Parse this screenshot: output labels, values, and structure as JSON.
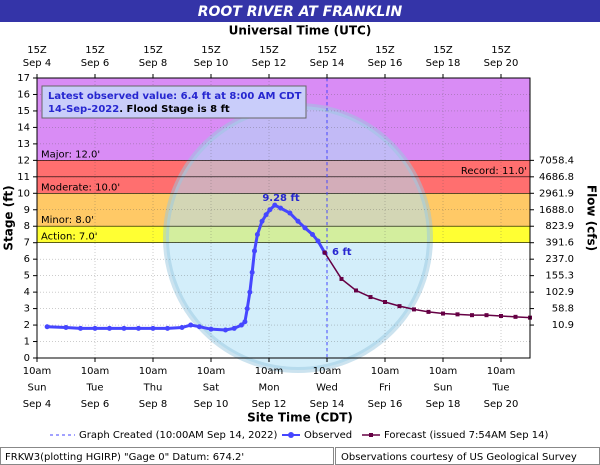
{
  "chart_data": {
    "type": "line",
    "title": "ROOT RIVER AT FRANKLIN",
    "top_axis_title": "Universal Time (UTC)",
    "x_axis_title": "Site Time (CDT)",
    "y_axis_title": "Stage (ft)",
    "y2_axis_title": "Flow (cfs)",
    "xlim": [
      4,
      21
    ],
    "ylim": [
      0,
      17
    ],
    "yticks": [
      0,
      1,
      2,
      3,
      4,
      5,
      6,
      7,
      8,
      9,
      10,
      11,
      12,
      13,
      14,
      15,
      16,
      17
    ],
    "grid": true,
    "xticks": [
      {
        "value": 4,
        "label": [
          "10am",
          "Sun",
          "Sep 4"
        ],
        "top": [
          "15Z",
          "Sep 4"
        ]
      },
      {
        "value": 6,
        "label": [
          "10am",
          "Tue",
          "Sep 6"
        ],
        "top": [
          "15Z",
          "Sep 6"
        ]
      },
      {
        "value": 8,
        "label": [
          "10am",
          "Thu",
          "Sep 8"
        ],
        "top": [
          "15Z",
          "Sep 8"
        ]
      },
      {
        "value": 10,
        "label": [
          "10am",
          "Sat",
          "Sep 10"
        ],
        "top": [
          "15Z",
          "Sep 10"
        ]
      },
      {
        "value": 12,
        "label": [
          "10am",
          "Mon",
          "Sep 12"
        ],
        "top": [
          "15Z",
          "Sep 12"
        ]
      },
      {
        "value": 14,
        "label": [
          "10am",
          "Wed",
          "Sep 14"
        ],
        "top": [
          "15Z",
          "Sep 14"
        ]
      },
      {
        "value": 16,
        "label": [
          "10am",
          "Fri",
          "Sep 16"
        ],
        "top": [
          "15Z",
          "Sep 16"
        ]
      },
      {
        "value": 18,
        "label": [
          "10am",
          "Sun",
          "Sep 18"
        ],
        "top": [
          "15Z",
          "Sep 18"
        ]
      },
      {
        "value": 20,
        "label": [
          "10am",
          "Tue",
          "Sep 20"
        ],
        "top": [
          "15Z",
          "Sep 20"
        ]
      }
    ],
    "y2ticks": [
      {
        "stage": 12,
        "label": "7058.4"
      },
      {
        "stage": 11,
        "label": "4686.8"
      },
      {
        "stage": 10,
        "label": "2961.9"
      },
      {
        "stage": 9,
        "label": "1688.0"
      },
      {
        "stage": 8,
        "label": "823.9"
      },
      {
        "stage": 7,
        "label": "391.6"
      },
      {
        "stage": 6,
        "label": "237.0"
      },
      {
        "stage": 5,
        "label": "155.3"
      },
      {
        "stage": 4,
        "label": "102.9"
      },
      {
        "stage": 3,
        "label": "58.8"
      },
      {
        "stage": 2,
        "label": "10.9"
      }
    ],
    "bands": [
      {
        "from": 7,
        "to": 8,
        "color": "#ffff33"
      },
      {
        "from": 8,
        "to": 10,
        "color": "#ffc966"
      },
      {
        "from": 10,
        "to": 12,
        "color": "#ff6f6f"
      },
      {
        "from": 12,
        "to": 17,
        "color": "#d98cf5"
      }
    ],
    "flood_levels": [
      {
        "stage": 12,
        "label": "Major: 12.0'"
      },
      {
        "stage": 10,
        "label": "Moderate: 10.0'"
      },
      {
        "stage": 8,
        "label": "Minor: 8.0'"
      },
      {
        "stage": 7,
        "label": "Action: 7.0'"
      }
    ],
    "record": {
      "stage": 11,
      "label": "Record: 11.0'"
    },
    "graph_created": {
      "x": 14,
      "label": "Graph Created (10:00AM Sep 14, 2022)"
    },
    "series": [
      {
        "name": "Observed",
        "color": "#4646ff",
        "x": [
          4.35,
          5,
          5.5,
          6,
          6.5,
          7,
          7.5,
          8,
          8.5,
          9,
          9.3,
          9.6,
          10,
          10.5,
          10.8,
          11.05,
          11.17,
          11.25,
          11.34,
          11.42,
          11.5,
          11.6,
          11.76,
          11.9,
          12.03,
          12.2,
          12.4,
          12.72,
          13,
          13.24,
          13.5,
          13.69,
          13.92
        ],
        "values": [
          1.9,
          1.85,
          1.8,
          1.8,
          1.8,
          1.8,
          1.8,
          1.8,
          1.8,
          1.85,
          2.0,
          1.9,
          1.75,
          1.7,
          1.8,
          2.0,
          2.2,
          3.0,
          4.0,
          5.2,
          6.5,
          7.5,
          8.3,
          8.7,
          9.0,
          9.28,
          9.1,
          8.8,
          8.3,
          7.9,
          7.5,
          7.1,
          6.4
        ]
      },
      {
        "name": "Forecast (issued 7:54AM Sep 14)",
        "color": "#660044",
        "x": [
          13.92,
          14.5,
          15,
          15.5,
          16,
          16.5,
          17,
          17.5,
          18,
          18.5,
          19,
          19.5,
          20,
          20.5,
          21
        ],
        "values": [
          6.4,
          4.8,
          4.1,
          3.7,
          3.4,
          3.15,
          2.95,
          2.8,
          2.7,
          2.65,
          2.6,
          2.6,
          2.55,
          2.5,
          2.45
        ]
      }
    ],
    "annotations": [
      "9.28 ft",
      "6 ft"
    ],
    "info": {
      "line1": "Latest observed value: 6.4 ft at 8:00 AM CDT",
      "date": "14-Sep-2022",
      "rest": ". Flood Stage is 8 ft"
    },
    "footer": {
      "left": "FRKW3(plotting HGIRP) \"Gage 0\" Datum: 674.2'",
      "right": "Observations courtesy of US Geological Survey"
    }
  }
}
